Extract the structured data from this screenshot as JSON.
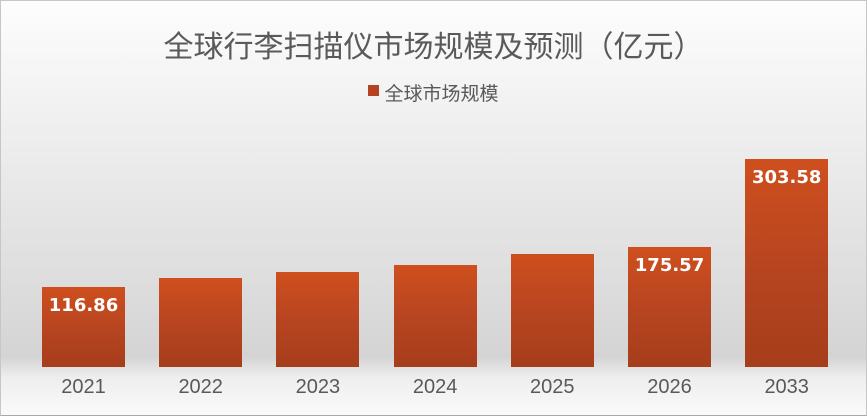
{
  "chart_data": {
    "type": "bar",
    "title": "全球行李扫描仪市场规模及预测（亿元）",
    "legend": {
      "label": "全球市场规模",
      "swatch_color": "#b5431f"
    },
    "legend_position": "top",
    "categories": [
      "2021",
      "2022",
      "2023",
      "2024",
      "2025",
      "2026",
      "2033"
    ],
    "series": [
      {
        "name": "全球市场规模",
        "values": [
          116.86,
          129.5,
          138.5,
          149,
          165,
          175.57,
          303.58
        ]
      }
    ],
    "value_labels_shown": [
      "116.86",
      null,
      null,
      null,
      null,
      "175.57",
      "303.58"
    ],
    "estimated_indices": [
      1,
      2,
      3,
      4
    ],
    "ylim": [
      0,
      320
    ],
    "grid": false,
    "xlabel": "",
    "ylabel": "",
    "colors": {
      "bar_gradient_top": "#cf4f1e",
      "bar_gradient_bottom": "#a63d1b",
      "value_label": "#ffffff",
      "axis_label": "#595959",
      "title": "#5a5a5a"
    }
  }
}
